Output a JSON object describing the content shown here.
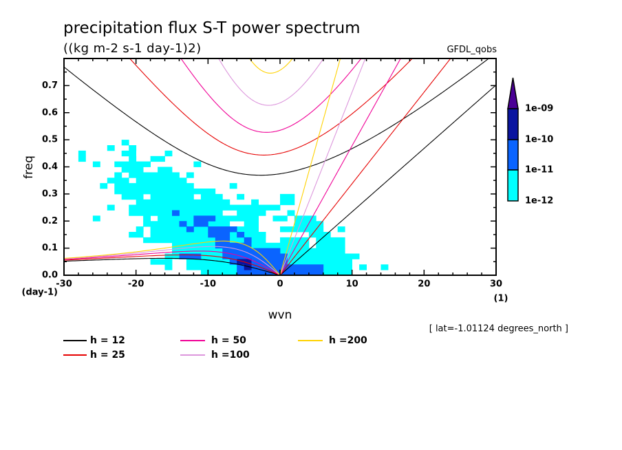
{
  "chart_data": {
    "type": "heatmap",
    "title": "precipitation flux S-T power spectrum",
    "subtitle": "((kg m-2 s-1 day-1)2)",
    "dataset_label": "GFDL_qobs",
    "annotation": "[ lat=-1.01124 degrees_north ]",
    "xlabel": "wvn",
    "xunits": "(1)",
    "ylabel": "freq",
    "yunits": "(day-1)",
    "xlim": [
      -30,
      30
    ],
    "ylim": [
      0,
      0.8
    ],
    "grid": false,
    "xticks": [
      -30,
      -20,
      -10,
      0,
      10,
      20,
      30
    ],
    "xtick_labels": [
      "-30",
      "-20",
      "-10",
      "0",
      "10",
      "20",
      "30"
    ],
    "xminor_step": 2,
    "yticks": [
      0.0,
      0.1,
      0.2,
      0.3,
      0.4,
      0.5,
      0.6,
      0.7
    ],
    "ytick_labels": [
      "0.0",
      "0.1",
      "0.2",
      "0.3",
      "0.4",
      "0.5",
      "0.6",
      "0.7"
    ],
    "yminor_step": 0.05,
    "colorbar": {
      "placement": "right",
      "extend": "max",
      "labels": [
        "1e-12",
        "1e-11",
        "1e-10",
        "1e-09"
      ],
      "colors": [
        "#00FFFF",
        "#0A64FF",
        "#0A14A0",
        "#4B0096"
      ]
    },
    "shading": {
      "description": "power level index per (freq band, wavenumber range): 1=1e-12..1e-11, 2=1e-11..1e-10, 3=1e-10..1e-09",
      "freq_bin": 0.02,
      "cells": [
        [
          0.48,
          -22,
          -21,
          1
        ],
        [
          0.46,
          -24,
          -23,
          1
        ],
        [
          0.46,
          -21,
          -20,
          1
        ],
        [
          0.44,
          -28,
          -27,
          1
        ],
        [
          0.44,
          -22,
          -20,
          1
        ],
        [
          0.44,
          -16,
          -15,
          1
        ],
        [
          0.42,
          -28,
          -27,
          1
        ],
        [
          0.42,
          -21,
          -20,
          1
        ],
        [
          0.42,
          -18,
          -16,
          1
        ],
        [
          0.4,
          -26,
          -25,
          1
        ],
        [
          0.4,
          -23,
          -18,
          1
        ],
        [
          0.4,
          -12,
          -11,
          1
        ],
        [
          0.38,
          -22,
          -19,
          1
        ],
        [
          0.38,
          -17,
          -15,
          1
        ],
        [
          0.36,
          -23,
          -22,
          1
        ],
        [
          0.36,
          -21,
          -14,
          1
        ],
        [
          0.36,
          -13,
          -12,
          1
        ],
        [
          0.34,
          -24,
          -21,
          1
        ],
        [
          0.34,
          -20,
          -13,
          1
        ],
        [
          0.32,
          -25,
          -24,
          1
        ],
        [
          0.32,
          -23,
          -12,
          1
        ],
        [
          0.32,
          -7,
          -6,
          1
        ],
        [
          0.3,
          -23,
          -9,
          1
        ],
        [
          0.28,
          -22,
          -19,
          1
        ],
        [
          0.28,
          -18,
          -12,
          1
        ],
        [
          0.28,
          -11,
          -8,
          1
        ],
        [
          0.28,
          -6,
          -5,
          1
        ],
        [
          0.28,
          0,
          2,
          1
        ],
        [
          0.26,
          -20,
          -7,
          1
        ],
        [
          0.26,
          -4,
          -3,
          1
        ],
        [
          0.26,
          0,
          2,
          1
        ],
        [
          0.24,
          -24,
          -23,
          1
        ],
        [
          0.24,
          -21,
          0,
          1
        ],
        [
          0.22,
          -21,
          -8,
          1
        ],
        [
          0.22,
          -15,
          -14,
          2
        ],
        [
          0.22,
          -6,
          -2,
          1
        ],
        [
          0.22,
          1,
          2,
          1
        ],
        [
          0.2,
          -26,
          -25,
          1
        ],
        [
          0.2,
          -19,
          -18,
          1
        ],
        [
          0.2,
          -17,
          -3,
          1
        ],
        [
          0.2,
          -12,
          -9,
          2
        ],
        [
          0.2,
          -1,
          1,
          1
        ],
        [
          0.2,
          2,
          5,
          1
        ],
        [
          0.18,
          -19,
          -7,
          1
        ],
        [
          0.18,
          -5,
          -3,
          1
        ],
        [
          0.18,
          -14,
          -13,
          2
        ],
        [
          0.18,
          -12,
          -10,
          2
        ],
        [
          0.18,
          2,
          6,
          1
        ],
        [
          0.16,
          -20,
          -19,
          1
        ],
        [
          0.16,
          -18,
          -3,
          1
        ],
        [
          0.16,
          -13,
          -12,
          2
        ],
        [
          0.16,
          -10,
          -6,
          2
        ],
        [
          0.16,
          0,
          6,
          1
        ],
        [
          0.16,
          8,
          9,
          1
        ],
        [
          0.14,
          -21,
          -19,
          1
        ],
        [
          0.14,
          -18,
          -2,
          1
        ],
        [
          0.14,
          -10,
          -7,
          2
        ],
        [
          0.14,
          -6,
          -5,
          2
        ],
        [
          0.14,
          4,
          7,
          1
        ],
        [
          0.12,
          -19,
          -2,
          1
        ],
        [
          0.12,
          -9,
          -7,
          2
        ],
        [
          0.12,
          -5,
          -4,
          2
        ],
        [
          0.12,
          0,
          4,
          1
        ],
        [
          0.12,
          5,
          9,
          1
        ],
        [
          0.1,
          -15,
          0,
          1
        ],
        [
          0.1,
          -9,
          -4,
          2
        ],
        [
          0.1,
          0,
          4,
          1
        ],
        [
          0.1,
          5,
          9,
          1
        ],
        [
          0.08,
          -15,
          9,
          1
        ],
        [
          0.08,
          -8,
          0,
          2
        ],
        [
          0.06,
          -16,
          11,
          1
        ],
        [
          0.06,
          -14,
          -11,
          2
        ],
        [
          0.06,
          -8,
          1,
          2
        ],
        [
          0.04,
          -18,
          -15,
          1
        ],
        [
          0.04,
          -13,
          10,
          1
        ],
        [
          0.04,
          -7,
          1,
          2
        ],
        [
          0.04,
          -6,
          -4,
          3
        ],
        [
          0.02,
          -16,
          -15,
          1
        ],
        [
          0.02,
          -13,
          10,
          1
        ],
        [
          0.02,
          -6,
          6,
          2
        ],
        [
          0.02,
          -5,
          -4,
          3
        ],
        [
          0.02,
          11,
          12,
          1
        ],
        [
          0.02,
          14,
          15,
          1
        ],
        [
          0.0,
          -11,
          10,
          1
        ],
        [
          0.0,
          -6,
          6,
          2
        ]
      ]
    },
    "dispersion_curves": {
      "waves": [
        "kelvin",
        "equatorial_rossby_n1",
        "inertio_gravity_n1"
      ],
      "equivalent_depths": [
        12,
        25,
        50,
        100,
        200
      ],
      "colors": [
        "#000000",
        "#E60000",
        "#F00096",
        "#DC96DC",
        "#FFD200"
      ]
    },
    "legend": {
      "placement": "bottom-left",
      "entries": [
        {
          "label": "h = 12",
          "color": "#000000"
        },
        {
          "label": "h = 25",
          "color": "#E60000"
        },
        {
          "label": "h = 50",
          "color": "#F00096"
        },
        {
          "label": "h =100",
          "color": "#DC96DC"
        },
        {
          "label": "h =200",
          "color": "#FFD200"
        }
      ]
    }
  }
}
